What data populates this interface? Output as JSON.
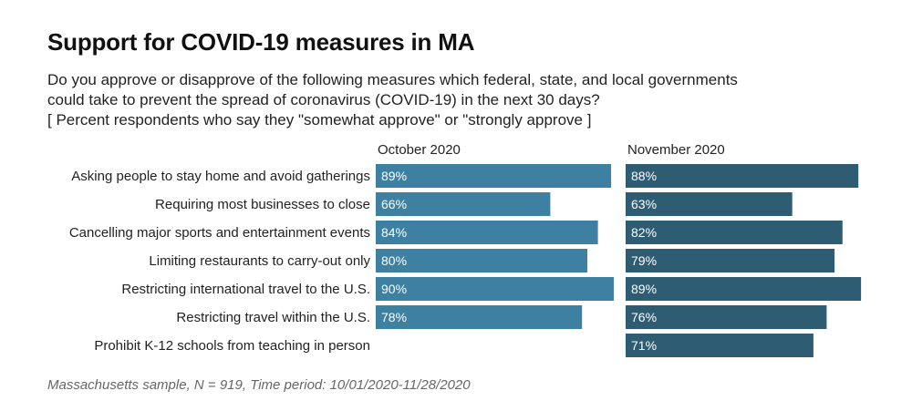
{
  "title": "Support for COVID-19 measures in MA",
  "subtitle": [
    "Do you approve or disapprove of the following measures which federal, state, and local governments",
    "could take to prevent the spread of coronavirus (COVID-19) in the next 30 days?",
    "[ Percent respondents who say they \"somewhat approve\" or \"strongly approve ]"
  ],
  "footer": "Massachusetts sample, N = 919, Time period: 10/01/2020-11/28/2020",
  "colors": {
    "october": "#3d80a1",
    "november": "#2e5c73",
    "label_text": "#ffffff"
  },
  "chart_data": {
    "type": "bar",
    "orientation": "horizontal",
    "categories": [
      "Asking people to stay home and avoid gatherings",
      "Requiring most businesses to close",
      "Cancelling major sports and entertainment events",
      "Limiting restaurants to carry-out only",
      "Restricting international travel to the U.S.",
      "Restricting travel within the U.S.",
      "Prohibit K-12 schools from teaching in person"
    ],
    "series": [
      {
        "name": "October 2020",
        "values": [
          89,
          66,
          84,
          80,
          90,
          78,
          null
        ],
        "labels": [
          "89%",
          "66%",
          "84%",
          "80%",
          "90%",
          "78%",
          ""
        ]
      },
      {
        "name": "November 2020",
        "values": [
          88,
          63,
          82,
          79,
          89,
          76,
          71
        ],
        "labels": [
          "88%",
          "63%",
          "82%",
          "79%",
          "89%",
          "76%",
          "71%"
        ]
      }
    ],
    "value_unit": "%"
  }
}
